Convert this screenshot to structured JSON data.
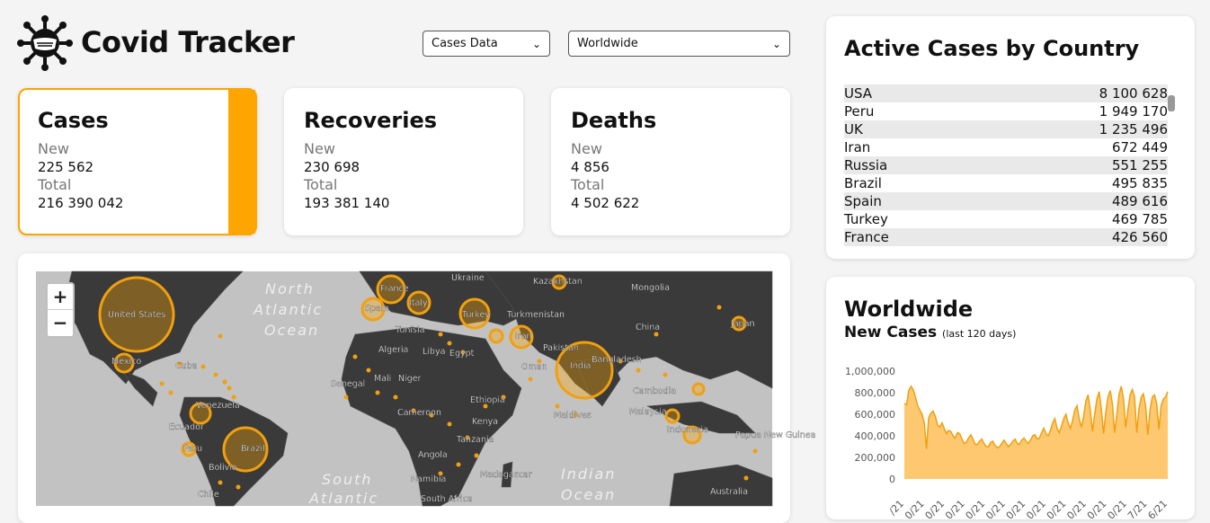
{
  "header": {
    "title": "Covid Tracker",
    "data_select": {
      "value": "Cases Data"
    },
    "region_select": {
      "value": "Worldwide"
    }
  },
  "stats": [
    {
      "title": "Cases",
      "new_label": "New",
      "new_value": "225 562",
      "total_label": "Total",
      "total_value": "216 390 042"
    },
    {
      "title": "Recoveries",
      "new_label": "New",
      "new_value": "230 698",
      "total_label": "Total",
      "total_value": "193 381 140"
    },
    {
      "title": "Deaths",
      "new_label": "New",
      "new_value": "4 856",
      "total_label": "Total",
      "total_value": "4 502 622"
    }
  ],
  "map": {
    "zoom_in": "+",
    "zoom_out": "−",
    "ocean_labels": [
      "North",
      "Atlantic",
      "Ocean",
      "South",
      "Atlantic",
      "Indian",
      "Ocean"
    ],
    "country_labels": [
      "United States",
      "Mexico",
      "Cuba",
      "Ecuador",
      "Venezuela",
      "Brazil",
      "Peru",
      "Bolivia",
      "Chile",
      "France",
      "Spain",
      "Italy",
      "Ukraine",
      "Turkey",
      "Turkmenistan",
      "Kazakhstan",
      "Mongolia",
      "China",
      "Japan",
      "Iran",
      "Pakistan",
      "Bangladesh",
      "India",
      "Tunisia",
      "Algeria",
      "Libya",
      "Egypt",
      "Mali",
      "Niger",
      "Senegal",
      "Cameroon",
      "Ethiopia",
      "Kenya",
      "Tanzania",
      "Angola",
      "Namibia",
      "South Africa",
      "Madagascar",
      "Oman",
      "Maldives",
      "Cambodia",
      "Malaysia",
      "Indonesia",
      "Papua New Guinea",
      "Australia"
    ]
  },
  "active_table": {
    "title": "Active Cases by Country",
    "rows": [
      {
        "country": "USA",
        "value": "8 100 628"
      },
      {
        "country": "Peru",
        "value": "1 949 170"
      },
      {
        "country": "UK",
        "value": "1 235 496"
      },
      {
        "country": "Iran",
        "value": "672 449"
      },
      {
        "country": "Russia",
        "value": "551 255"
      },
      {
        "country": "Brazil",
        "value": "495 835"
      },
      {
        "country": "Spain",
        "value": "489 616"
      },
      {
        "country": "Turkey",
        "value": "469 785"
      },
      {
        "country": "France",
        "value": "426 560"
      }
    ]
  },
  "chart_card": {
    "title": "Worldwide",
    "subtitle": "New Cases",
    "note": "(last 120 days)"
  },
  "chart_data": {
    "type": "area",
    "title": "New Cases",
    "ylim": [
      0,
      1000000
    ],
    "yticks": [
      "1,000,000",
      "800,000",
      "600,000",
      "400,000",
      "200,000",
      "0"
    ],
    "xtick_labels": [
      "/21",
      "0/21",
      "0/21",
      "0/21",
      "0/21",
      "0/21",
      "0/21",
      "0/21",
      "0/21",
      "0/21",
      "0/21",
      "0/21",
      "7/21",
      "6/21"
    ],
    "values": [
      700000,
      690000,
      820000,
      860000,
      830000,
      760000,
      680000,
      640000,
      600000,
      520000,
      280000,
      570000,
      610000,
      630000,
      580000,
      500000,
      480000,
      520000,
      470000,
      420000,
      450000,
      440000,
      400000,
      380000,
      430000,
      420000,
      370000,
      330000,
      340000,
      380000,
      410000,
      370000,
      320000,
      320000,
      350000,
      370000,
      330000,
      300000,
      300000,
      340000,
      350000,
      310000,
      290000,
      300000,
      330000,
      360000,
      330000,
      300000,
      320000,
      350000,
      370000,
      330000,
      320000,
      360000,
      380000,
      350000,
      330000,
      360000,
      400000,
      410000,
      370000,
      380000,
      430000,
      470000,
      420000,
      400000,
      450000,
      520000,
      560000,
      470000,
      430000,
      490000,
      560000,
      600000,
      520000,
      470000,
      540000,
      640000,
      680000,
      560000,
      480000,
      580000,
      720000,
      780000,
      640000,
      440000,
      600000,
      740000,
      810000,
      650000,
      420000,
      620000,
      760000,
      820000,
      700000,
      430000,
      600000,
      780000,
      860000,
      740000,
      480000,
      640000,
      780000,
      830000,
      760000,
      430000,
      650000,
      760000,
      790000,
      680000,
      410000,
      640000,
      760000,
      780000,
      700000,
      460000,
      680000,
      740000,
      760000,
      810000
    ],
    "series_color": "#f0a010",
    "fill_color": "#fdc870"
  },
  "colors": {
    "accent": "#ffa500",
    "map_land": "#3a3a3a",
    "map_water": "#c2c2c2"
  }
}
